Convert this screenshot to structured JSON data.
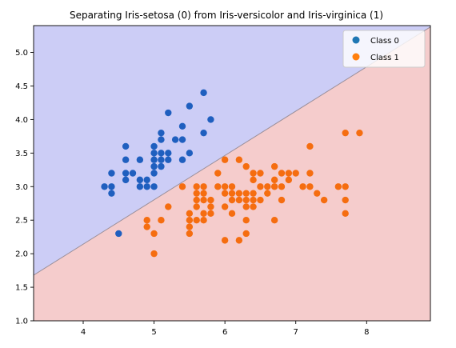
{
  "chart_data": {
    "type": "scatter",
    "title": "Separating Iris-setosa (0) from Iris-versicolor and Iris-virginica (1)",
    "xlabel": "",
    "ylabel": "",
    "xlim": [
      3.3,
      8.9
    ],
    "ylim": [
      1.0,
      5.4
    ],
    "x_ticks": [
      "4",
      "5",
      "6",
      "7",
      "8"
    ],
    "y_ticks": [
      "1.0",
      "1.5",
      "2.0",
      "2.5",
      "3.0",
      "3.5",
      "4.0",
      "4.5",
      "5.0"
    ],
    "grid": false,
    "legend_position": "top-right",
    "decision_boundary": {
      "line": [
        [
          3.3,
          1.68
        ],
        [
          8.9,
          5.38
        ]
      ],
      "region_above_color": "#cccdf6",
      "region_below_color": "#f5cccc"
    },
    "legend": [
      {
        "label": "Class 0",
        "color": "#1f77b4"
      },
      {
        "label": "Class 1",
        "color": "#ff7f0e"
      }
    ],
    "series": [
      {
        "name": "Class 0",
        "color": "#1f5fbf",
        "points": [
          [
            4.3,
            3.0
          ],
          [
            4.4,
            2.9
          ],
          [
            4.4,
            3.0
          ],
          [
            4.4,
            3.2
          ],
          [
            4.5,
            2.3
          ],
          [
            4.6,
            3.1
          ],
          [
            4.6,
            3.2
          ],
          [
            4.6,
            3.4
          ],
          [
            4.6,
            3.6
          ],
          [
            4.7,
            3.2
          ],
          [
            4.8,
            3.0
          ],
          [
            4.8,
            3.1
          ],
          [
            4.8,
            3.4
          ],
          [
            4.9,
            3.0
          ],
          [
            4.9,
            3.1
          ],
          [
            5.0,
            3.0
          ],
          [
            5.0,
            3.2
          ],
          [
            5.0,
            3.3
          ],
          [
            5.0,
            3.4
          ],
          [
            5.0,
            3.5
          ],
          [
            5.0,
            3.6
          ],
          [
            5.1,
            3.3
          ],
          [
            5.1,
            3.4
          ],
          [
            5.1,
            3.5
          ],
          [
            5.1,
            3.7
          ],
          [
            5.1,
            3.8
          ],
          [
            5.2,
            3.4
          ],
          [
            5.2,
            3.5
          ],
          [
            5.2,
            4.1
          ],
          [
            5.3,
            3.7
          ],
          [
            5.4,
            3.4
          ],
          [
            5.4,
            3.7
          ],
          [
            5.4,
            3.9
          ],
          [
            5.5,
            3.5
          ],
          [
            5.5,
            4.2
          ],
          [
            5.7,
            3.8
          ],
          [
            5.7,
            4.4
          ],
          [
            5.8,
            4.0
          ]
        ]
      },
      {
        "name": "Class 1",
        "color": "#f56d10",
        "points": [
          [
            4.9,
            2.4
          ],
          [
            4.9,
            2.5
          ],
          [
            5.0,
            2.0
          ],
          [
            5.0,
            2.3
          ],
          [
            5.1,
            2.5
          ],
          [
            5.2,
            2.7
          ],
          [
            5.4,
            3.0
          ],
          [
            5.5,
            2.3
          ],
          [
            5.5,
            2.4
          ],
          [
            5.5,
            2.5
          ],
          [
            5.5,
            2.6
          ],
          [
            5.6,
            2.5
          ],
          [
            5.6,
            2.7
          ],
          [
            5.6,
            2.8
          ],
          [
            5.6,
            2.9
          ],
          [
            5.6,
            3.0
          ],
          [
            5.7,
            2.5
          ],
          [
            5.7,
            2.6
          ],
          [
            5.7,
            2.8
          ],
          [
            5.7,
            2.9
          ],
          [
            5.7,
            3.0
          ],
          [
            5.8,
            2.6
          ],
          [
            5.8,
            2.7
          ],
          [
            5.8,
            2.8
          ],
          [
            5.9,
            3.0
          ],
          [
            5.9,
            3.2
          ],
          [
            6.0,
            2.2
          ],
          [
            6.0,
            2.7
          ],
          [
            6.0,
            2.9
          ],
          [
            6.0,
            3.0
          ],
          [
            6.0,
            3.4
          ],
          [
            6.1,
            2.6
          ],
          [
            6.1,
            2.8
          ],
          [
            6.1,
            2.9
          ],
          [
            6.1,
            3.0
          ],
          [
            6.2,
            2.2
          ],
          [
            6.2,
            2.8
          ],
          [
            6.2,
            2.9
          ],
          [
            6.2,
            3.4
          ],
          [
            6.3,
            2.3
          ],
          [
            6.3,
            2.5
          ],
          [
            6.3,
            2.7
          ],
          [
            6.3,
            2.8
          ],
          [
            6.3,
            2.9
          ],
          [
            6.3,
            3.3
          ],
          [
            6.4,
            2.7
          ],
          [
            6.4,
            2.8
          ],
          [
            6.4,
            2.9
          ],
          [
            6.4,
            3.1
          ],
          [
            6.4,
            3.2
          ],
          [
            6.5,
            2.8
          ],
          [
            6.5,
            3.0
          ],
          [
            6.5,
            3.2
          ],
          [
            6.6,
            2.9
          ],
          [
            6.6,
            3.0
          ],
          [
            6.7,
            2.5
          ],
          [
            6.7,
            3.0
          ],
          [
            6.7,
            3.1
          ],
          [
            6.7,
            3.3
          ],
          [
            6.8,
            2.8
          ],
          [
            6.8,
            3.0
          ],
          [
            6.8,
            3.2
          ],
          [
            6.9,
            3.1
          ],
          [
            6.9,
            3.2
          ],
          [
            7.0,
            3.2
          ],
          [
            7.1,
            3.0
          ],
          [
            7.2,
            3.0
          ],
          [
            7.2,
            3.2
          ],
          [
            7.2,
            3.6
          ],
          [
            7.3,
            2.9
          ],
          [
            7.4,
            2.8
          ],
          [
            7.6,
            3.0
          ],
          [
            7.7,
            2.6
          ],
          [
            7.7,
            2.8
          ],
          [
            7.7,
            3.0
          ],
          [
            7.7,
            3.8
          ],
          [
            7.9,
            3.8
          ]
        ]
      }
    ]
  }
}
